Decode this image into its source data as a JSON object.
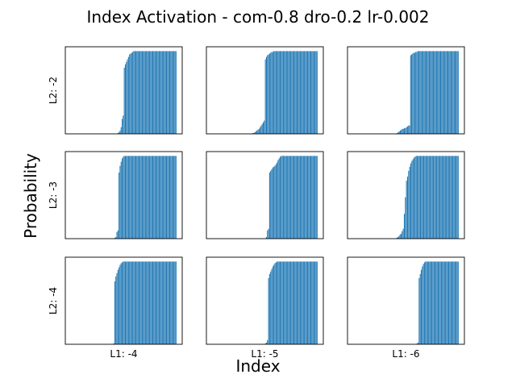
{
  "figure": {
    "title": "Index Activation - com-0.8 dro-0.2 lr-0.002",
    "xlabel": "Index",
    "ylabel": "Probability"
  },
  "colors": {
    "bar": "#1f77b4",
    "frame": "#000000"
  },
  "chart_data": [
    {
      "type": "bar",
      "row_label": "L2: -2",
      "col_label": "",
      "ylim": [
        0,
        1
      ],
      "grid": false,
      "values": [
        0,
        0,
        0,
        0,
        0,
        0,
        0,
        0,
        0,
        0,
        0,
        0,
        0,
        0,
        0,
        0,
        0,
        0,
        0,
        0,
        0,
        0,
        0,
        0,
        0,
        0,
        0,
        0,
        0,
        0,
        0,
        0,
        0,
        0,
        0,
        0,
        0,
        0,
        0,
        0,
        0,
        0,
        0,
        0,
        0.01,
        0.02,
        0.04,
        0.08,
        0.18,
        0.22,
        0.8,
        0.84,
        0.87,
        0.9,
        0.93,
        0.96,
        0.97,
        0.98,
        0.99,
        1,
        1,
        1,
        1,
        1,
        1,
        1,
        1,
        1,
        1,
        1,
        1,
        1,
        1,
        1,
        1,
        1,
        1,
        1,
        1,
        1,
        1,
        1,
        1,
        1,
        1,
        1,
        1,
        1,
        1,
        1,
        1,
        1,
        1,
        1,
        1,
        1,
        1,
        1,
        1,
        1
      ]
    },
    {
      "type": "bar",
      "row_label": "",
      "col_label": "",
      "ylim": [
        0,
        1
      ],
      "grid": false,
      "values": [
        0,
        0,
        0,
        0,
        0,
        0,
        0,
        0,
        0,
        0,
        0,
        0,
        0,
        0,
        0,
        0,
        0,
        0,
        0,
        0,
        0,
        0,
        0,
        0,
        0,
        0,
        0,
        0,
        0,
        0,
        0,
        0,
        0,
        0,
        0,
        0,
        0,
        0,
        0.01,
        0.01,
        0.02,
        0.03,
        0.04,
        0.05,
        0.06,
        0.08,
        0.1,
        0.12,
        0.14,
        0.16,
        0.9,
        0.93,
        0.95,
        0.96,
        0.97,
        0.98,
        0.99,
        0.99,
        1,
        1,
        1,
        1,
        1,
        1,
        1,
        1,
        1,
        1,
        1,
        1,
        1,
        1,
        1,
        1,
        1,
        1,
        1,
        1,
        1,
        1,
        1,
        1,
        1,
        1,
        1,
        1,
        1,
        1,
        1,
        1,
        1,
        1,
        1,
        1,
        1,
        1,
        1,
        1,
        1,
        1
      ]
    },
    {
      "type": "bar",
      "row_label": "",
      "col_label": "",
      "ylim": [
        0,
        1
      ],
      "grid": false,
      "values": [
        0,
        0,
        0,
        0,
        0,
        0,
        0,
        0,
        0,
        0,
        0,
        0,
        0,
        0,
        0,
        0,
        0,
        0,
        0,
        0,
        0,
        0,
        0,
        0,
        0,
        0,
        0,
        0,
        0,
        0,
        0,
        0,
        0,
        0,
        0,
        0,
        0,
        0,
        0,
        0,
        0,
        0,
        0.01,
        0.02,
        0.03,
        0.04,
        0.05,
        0.06,
        0.06,
        0.07,
        0.07,
        0.08,
        0.09,
        0.1,
        0.1,
        0.95,
        0.96,
        0.97,
        0.98,
        0.98,
        0.99,
        0.99,
        1,
        1,
        1,
        1,
        1,
        1,
        1,
        1,
        1,
        1,
        1,
        1,
        1,
        1,
        1,
        1,
        1,
        1,
        1,
        1,
        1,
        1,
        1,
        1,
        1,
        1,
        1,
        1,
        1,
        1,
        1,
        1,
        1,
        1,
        1,
        1,
        1,
        1,
        1,
        1
      ]
    },
    {
      "type": "bar",
      "row_label": "L2: -3",
      "col_label": "",
      "ylim": [
        0,
        1
      ],
      "grid": false,
      "values": [
        0,
        0,
        0,
        0,
        0,
        0,
        0,
        0,
        0,
        0,
        0,
        0,
        0,
        0,
        0,
        0,
        0,
        0,
        0,
        0,
        0,
        0,
        0,
        0,
        0,
        0,
        0,
        0,
        0,
        0,
        0,
        0,
        0,
        0,
        0,
        0,
        0,
        0,
        0,
        0,
        0,
        0.01,
        0.02,
        0.08,
        0.1,
        0.8,
        0.88,
        0.93,
        0.97,
        0.99,
        1,
        1,
        1,
        1,
        1,
        1,
        1,
        1,
        1,
        1,
        1,
        1,
        1,
        1,
        1,
        1,
        1,
        1,
        1,
        1,
        1,
        1,
        1,
        1,
        1,
        1,
        1,
        1,
        1,
        1,
        1,
        1,
        1,
        1,
        1,
        1,
        1,
        1,
        1,
        1,
        1,
        1,
        1,
        1,
        1,
        1,
        1,
        1,
        1,
        1
      ]
    },
    {
      "type": "bar",
      "row_label": "",
      "col_label": "",
      "ylim": [
        0,
        1
      ],
      "grid": false,
      "values": [
        0,
        0,
        0,
        0,
        0,
        0,
        0,
        0,
        0,
        0,
        0,
        0,
        0,
        0,
        0,
        0,
        0,
        0,
        0,
        0,
        0,
        0,
        0,
        0,
        0,
        0,
        0,
        0,
        0,
        0,
        0,
        0,
        0,
        0,
        0,
        0,
        0,
        0,
        0,
        0,
        0,
        0,
        0,
        0,
        0,
        0,
        0,
        0,
        0,
        0,
        0,
        0.02,
        0.1,
        0.12,
        0.8,
        0.82,
        0.84,
        0.86,
        0.87,
        0.88,
        0.9,
        0.92,
        0.95,
        0.97,
        0.99,
        1,
        1,
        1,
        1,
        1,
        1,
        1,
        1,
        1,
        1,
        1,
        1,
        1,
        1,
        1,
        1,
        1,
        1,
        1,
        1,
        1,
        1,
        1,
        1,
        1,
        1,
        1,
        1,
        1,
        1,
        1,
        1,
        1,
        1,
        1
      ]
    },
    {
      "type": "bar",
      "row_label": "",
      "col_label": "",
      "ylim": [
        0,
        1
      ],
      "grid": false,
      "values": [
        0,
        0,
        0,
        0,
        0,
        0,
        0,
        0,
        0,
        0,
        0,
        0,
        0,
        0,
        0,
        0,
        0,
        0,
        0,
        0,
        0,
        0,
        0,
        0,
        0,
        0,
        0,
        0,
        0,
        0,
        0,
        0,
        0,
        0,
        0,
        0,
        0,
        0,
        0,
        0,
        0.01,
        0.02,
        0.03,
        0.05,
        0.06,
        0.09,
        0.12,
        0.3,
        0.5,
        0.7,
        0.75,
        0.82,
        0.87,
        0.91,
        0.94,
        0.96,
        0.98,
        0.99,
        1,
        1,
        1,
        1,
        1,
        1,
        1,
        1,
        1,
        1,
        1,
        1,
        1,
        1,
        1,
        1,
        1,
        1,
        1,
        1,
        1,
        1,
        1,
        1,
        1,
        1,
        1,
        1,
        1,
        1,
        1,
        1,
        1,
        1,
        1,
        1,
        1,
        1,
        1,
        1
      ]
    },
    {
      "type": "bar",
      "row_label": "L2: -4",
      "col_label": "L1: -4",
      "ylim": [
        0,
        1
      ],
      "grid": false,
      "values": [
        0,
        0,
        0,
        0,
        0,
        0,
        0,
        0,
        0,
        0,
        0,
        0,
        0,
        0,
        0,
        0,
        0,
        0,
        0,
        0,
        0,
        0,
        0,
        0,
        0,
        0,
        0,
        0,
        0,
        0,
        0,
        0,
        0,
        0,
        0,
        0,
        0,
        0,
        0,
        0,
        0.01,
        0.76,
        0.82,
        0.86,
        0.9,
        0.93,
        0.96,
        0.98,
        0.99,
        1,
        1,
        1,
        1,
        1,
        1,
        1,
        1,
        1,
        1,
        1,
        1,
        1,
        1,
        1,
        1,
        1,
        1,
        1,
        1,
        1,
        1,
        1,
        1,
        1,
        1,
        1,
        1,
        1,
        1,
        1,
        1,
        1,
        1,
        1,
        1,
        1,
        1,
        1,
        1,
        1,
        1,
        1,
        1,
        1,
        1,
        1,
        1,
        1,
        1,
        1
      ]
    },
    {
      "type": "bar",
      "row_label": "",
      "col_label": "L1: -5",
      "ylim": [
        0,
        1
      ],
      "grid": false,
      "values": [
        0,
        0,
        0,
        0,
        0,
        0,
        0,
        0,
        0,
        0,
        0,
        0,
        0,
        0,
        0,
        0,
        0,
        0,
        0,
        0,
        0,
        0,
        0,
        0,
        0,
        0,
        0,
        0,
        0,
        0,
        0,
        0,
        0,
        0,
        0,
        0,
        0,
        0,
        0,
        0,
        0,
        0,
        0,
        0,
        0,
        0,
        0,
        0,
        0,
        0,
        0.01,
        0.02,
        0.05,
        0.8,
        0.85,
        0.88,
        0.91,
        0.94,
        0.96,
        0.98,
        0.99,
        1,
        1,
        1,
        1,
        1,
        1,
        1,
        1,
        1,
        1,
        1,
        1,
        1,
        1,
        1,
        1,
        1,
        1,
        1,
        1,
        1,
        1,
        1,
        1,
        1,
        1,
        1,
        1,
        1,
        1,
        1,
        1,
        1,
        1,
        1,
        1,
        1,
        1,
        1
      ]
    },
    {
      "type": "bar",
      "row_label": "",
      "col_label": "L1: -6",
      "ylim": [
        0,
        1
      ],
      "grid": false,
      "values": [
        0,
        0,
        0,
        0,
        0,
        0,
        0,
        0,
        0,
        0,
        0,
        0,
        0,
        0,
        0,
        0,
        0,
        0,
        0,
        0,
        0,
        0,
        0,
        0,
        0,
        0,
        0,
        0,
        0,
        0,
        0,
        0,
        0,
        0,
        0,
        0,
        0,
        0,
        0,
        0,
        0,
        0,
        0,
        0,
        0,
        0,
        0,
        0,
        0,
        0,
        0,
        0,
        0,
        0,
        0,
        0,
        0,
        0,
        0,
        0,
        0.01,
        0.02,
        0.8,
        0.85,
        0.9,
        0.94,
        0.97,
        0.99,
        1,
        1,
        1,
        1,
        1,
        1,
        1,
        1,
        1,
        1,
        1,
        1,
        1,
        1,
        1,
        1,
        1,
        1,
        1,
        1,
        1,
        1,
        1,
        1,
        1,
        1,
        1,
        1,
        1,
        1,
        1,
        1
      ]
    }
  ]
}
